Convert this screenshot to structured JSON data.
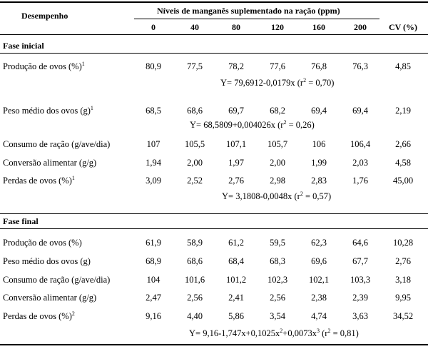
{
  "table": {
    "col_label_header": "Desempenho",
    "group_header": "Níveis de manganês suplementado na ração (ppm)",
    "levels": [
      "0",
      "40",
      "80",
      "120",
      "160",
      "200"
    ],
    "cv_header": "CV (%)",
    "sections": [
      {
        "title": "Fase inicial",
        "rows": [
          {
            "label": "Produção de ovos (%)",
            "sup": "1",
            "values": [
              "80,9",
              "77,5",
              "78,2",
              "77,6",
              "76,8",
              "76,3"
            ],
            "cv": "4,85",
            "eq": {
              "main": "Y= 79,6912-0,0179x  (r",
              "sup": "2",
              "tail": " = 0,70)"
            }
          },
          {
            "label": "Peso médio dos ovos (g)",
            "sup": "1",
            "values": [
              "68,5",
              "68,6",
              "69,7",
              "68,2",
              "69,4",
              "69,4"
            ],
            "cv": "2,19",
            "eq": {
              "main": "Y= 68,5809+0,004026x  (r",
              "sup": "2",
              "tail": " = 0,26)"
            }
          },
          {
            "label": "Consumo de ração (g/ave/dia)",
            "sup": "",
            "values": [
              "107",
              "105,5",
              "107,1",
              "105,7",
              "106",
              "106,4"
            ],
            "cv": "2,66"
          },
          {
            "label": "Conversão alimentar (g/g)",
            "sup": "",
            "values": [
              "1,94",
              "2,00",
              "1,97",
              "2,00",
              "1,99",
              "2,03"
            ],
            "cv": "4,58"
          },
          {
            "label": "Perdas de ovos (%)",
            "sup": "1",
            "values": [
              "3,09",
              "2,52",
              "2,76",
              "2,98",
              "2,83",
              "1,76"
            ],
            "cv": "45,00",
            "eq": {
              "main": "Y= 3,1808-0,0048x  (r",
              "sup": "2",
              "tail": " = 0,57)"
            }
          }
        ]
      },
      {
        "title": "Fase final",
        "rows": [
          {
            "label": "Produção de ovos (%)",
            "sup": "",
            "values": [
              "61,9",
              "58,9",
              "61,2",
              "59,5",
              "62,3",
              "64,6"
            ],
            "cv": "10,28"
          },
          {
            "label": "Peso médio dos ovos (g)",
            "sup": "",
            "values": [
              "68,9",
              "68,6",
              "68,4",
              "68,3",
              "69,6",
              "67,7"
            ],
            "cv": "2,76"
          },
          {
            "label": "Consumo de ração (g/ave/dia)",
            "sup": "",
            "values": [
              "104",
              "101,6",
              "101,2",
              "102,3",
              "102,1",
              "103,3"
            ],
            "cv": "3,18"
          },
          {
            "label": "Conversão alimentar (g/g)",
            "sup": "",
            "values": [
              "2,47",
              "2,56",
              "2,41",
              "2,56",
              "2,38",
              "2,39"
            ],
            "cv": "9,95"
          },
          {
            "label": "Perdas de ovos (%)",
            "sup": "2",
            "values": [
              "9,16",
              "4,40",
              "5,86",
              "3,54",
              "4,74",
              "3,63"
            ],
            "cv": "34,52",
            "eq": {
              "main": "Y= 9,16-1,747x+0,1025x",
              "sup": "2",
              "mid": "+0,0073x",
              "sup2": "3",
              "tail": "  (r",
              "sup3": "2",
              "tail2": " = 0,81)"
            }
          }
        ]
      }
    ]
  }
}
